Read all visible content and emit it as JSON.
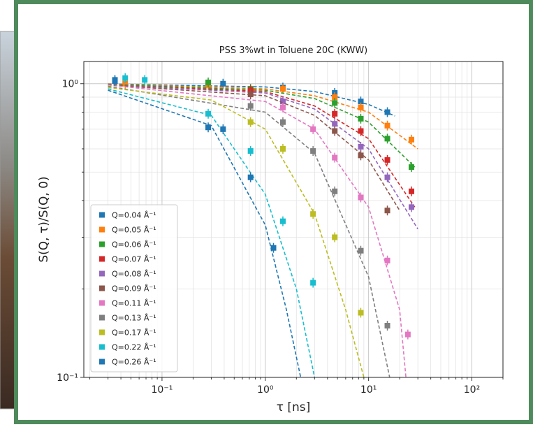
{
  "chart_data": {
    "type": "scatter",
    "title": "PSS 3%wt in Toluene 20C (KWW)",
    "x_label": "τ [ns]",
    "y_label": "S(Q, τ)/S(Q, 0)",
    "xscale": "log",
    "yscale": "log",
    "grid": true,
    "legend": "lower left",
    "xlim": [
      0.0175,
      200
    ],
    "ylim": [
      0.1,
      1.19
    ],
    "xticks": [
      {
        "value": 0.1,
        "label": "10⁻¹"
      },
      {
        "value": 1,
        "label": "10⁰"
      },
      {
        "value": 10,
        "label": "10¹"
      },
      {
        "value": 100,
        "label": "10²"
      }
    ],
    "yticks": [
      {
        "value": 0.1,
        "label": "10⁻¹"
      },
      {
        "value": 1,
        "label": "10⁰"
      }
    ],
    "xminorticks": [
      0.02,
      0.03,
      0.04,
      0.05,
      0.06,
      0.07,
      0.08,
      0.09,
      0.2,
      0.3,
      0.4,
      0.5,
      0.6,
      0.7,
      0.8,
      0.9,
      2,
      3,
      4,
      5,
      6,
      7,
      8,
      9,
      20,
      30,
      40,
      50,
      60,
      70,
      80,
      90,
      200
    ],
    "yminorticks": [
      0.2,
      0.3,
      0.4,
      0.5,
      0.6,
      0.7,
      0.8,
      0.9
    ],
    "series": [
      {
        "name": "Q=0.04 Å⁻¹",
        "color": "#1f77b4",
        "x": [
          0.035,
          0.39,
          1.48,
          4.7,
          8.4,
          15.2
        ],
        "values": [
          1.03,
          1.0,
          0.97,
          0.93,
          0.87,
          0.8
        ],
        "fit_x": [
          0.03,
          1,
          3,
          10,
          18
        ],
        "fit_values": [
          0.998,
          0.975,
          0.94,
          0.85,
          0.776
        ]
      },
      {
        "name": "Q=0.05 Å⁻¹",
        "color": "#ff7f0e",
        "x": [
          0.044,
          0.28,
          1.48,
          4.7,
          8.4,
          15.2,
          26
        ],
        "values": [
          1.0,
          0.99,
          0.96,
          0.9,
          0.83,
          0.72,
          0.645
        ],
        "fit_x": [
          0.03,
          1,
          3,
          10,
          30
        ],
        "fit_values": [
          0.997,
          0.96,
          0.91,
          0.8,
          0.6
        ]
      },
      {
        "name": "Q=0.06 Å⁻¹",
        "color": "#2ca02c",
        "x": [
          0.28,
          0.72,
          4.7,
          8.4,
          15.2,
          26
        ],
        "values": [
          1.01,
          0.96,
          0.86,
          0.76,
          0.65,
          0.52
        ],
        "fit_x": [
          0.03,
          1,
          3,
          10,
          28
        ],
        "fit_values": [
          0.995,
          0.95,
          0.89,
          0.74,
          0.52
        ]
      },
      {
        "name": "Q=0.07 Å⁻¹",
        "color": "#d62728",
        "x": [
          0.72,
          4.7,
          8.4,
          15.2,
          26
        ],
        "values": [
          0.95,
          0.79,
          0.69,
          0.55,
          0.43
        ],
        "fit_x": [
          0.03,
          1,
          3,
          10,
          28
        ],
        "fit_values": [
          0.99,
          0.94,
          0.84,
          0.65,
          0.38
        ]
      },
      {
        "name": "Q=0.08 Å⁻¹",
        "color": "#9467bd",
        "x": [
          1.48,
          4.7,
          8.4,
          15.2,
          26
        ],
        "values": [
          0.87,
          0.73,
          0.61,
          0.48,
          0.38
        ],
        "fit_x": [
          0.03,
          1,
          3,
          10,
          30
        ],
        "fit_values": [
          0.99,
          0.93,
          0.82,
          0.6,
          0.32
        ]
      },
      {
        "name": "Q=0.09 Å⁻¹",
        "color": "#8c564b",
        "x": [
          0.72,
          4.7,
          8.4,
          15.2
        ],
        "values": [
          0.92,
          0.69,
          0.57,
          0.37
        ],
        "fit_x": [
          0.03,
          1,
          3,
          10,
          20
        ],
        "fit_values": [
          0.99,
          0.91,
          0.78,
          0.55,
          0.37
        ]
      },
      {
        "name": "Q=0.11 Å⁻¹",
        "color": "#e377c2",
        "x": [
          1.48,
          2.9,
          4.7,
          8.4,
          15.2,
          24
        ],
        "values": [
          0.83,
          0.7,
          0.56,
          0.41,
          0.25,
          0.14
        ],
        "fit_x": [
          0.03,
          1,
          3,
          10,
          20,
          23
        ],
        "fit_values": [
          0.99,
          0.87,
          0.7,
          0.38,
          0.17,
          0.1
        ]
      },
      {
        "name": "Q=0.13 Å⁻¹",
        "color": "#7f7f7f",
        "x": [
          0.72,
          1.48,
          2.9,
          4.7,
          8.4,
          15.2
        ],
        "values": [
          0.84,
          0.74,
          0.59,
          0.43,
          0.27,
          0.15
        ],
        "fit_x": [
          0.03,
          1,
          3,
          10,
          16
        ],
        "fit_values": [
          0.98,
          0.8,
          0.58,
          0.22,
          0.1
        ]
      },
      {
        "name": "Q=0.17 Å⁻¹",
        "color": "#bcbd22",
        "x": [
          0.72,
          1.48,
          2.9,
          4.7,
          8.4
        ],
        "values": [
          0.74,
          0.6,
          0.36,
          0.3,
          0.166
        ],
        "fit_x": [
          0.03,
          0.3,
          1,
          3,
          6,
          9
        ],
        "fit_values": [
          0.97,
          0.88,
          0.7,
          0.36,
          0.17,
          0.1
        ]
      },
      {
        "name": "Q=0.22 Å⁻¹",
        "color": "#17becf",
        "x": [
          0.044,
          0.068,
          0.28,
          0.72,
          1.48,
          2.9
        ],
        "values": [
          1.045,
          1.03,
          0.79,
          0.59,
          0.34,
          0.21
        ],
        "fit_x": [
          0.03,
          0.3,
          1,
          2,
          3
        ],
        "fit_values": [
          0.96,
          0.78,
          0.42,
          0.2,
          0.1
        ]
      },
      {
        "name": "Q=0.26 Å⁻¹",
        "color": "#1f77b4",
        "x": [
          0.035,
          0.28,
          0.39,
          0.72,
          1.2
        ],
        "values": [
          1.02,
          0.71,
          0.7,
          0.48,
          0.276
        ],
        "fit_x": [
          0.03,
          0.3,
          1,
          1.6,
          2.2
        ],
        "fit_values": [
          0.95,
          0.72,
          0.33,
          0.17,
          0.1
        ]
      }
    ]
  }
}
